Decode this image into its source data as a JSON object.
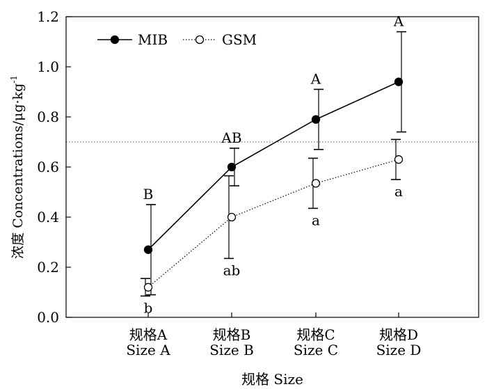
{
  "chart_data": {
    "type": "line",
    "title": "",
    "xlabel": "规格 Size",
    "ylabel": "浓度 Concentrations/μg·kg",
    "ylabel_superscript": "-1",
    "ylim": [
      0.0,
      1.2
    ],
    "y_ticks": [
      "0.0",
      "0.2",
      "0.4",
      "0.6",
      "0.8",
      "1.0",
      "1.2"
    ],
    "categories": [
      {
        "line1": "规格A",
        "line2": "Size A"
      },
      {
        "line1": "规格B",
        "line2": "Size B"
      },
      {
        "line1": "规格C",
        "line2": "Size C"
      },
      {
        "line1": "规格D",
        "line2": "Size D"
      }
    ],
    "reference_line": {
      "y": 0.7,
      "style": "dotted"
    },
    "series": [
      {
        "name": "MIB",
        "marker": "filled-circle",
        "line": "solid",
        "values": [
          0.27,
          0.6,
          0.79,
          0.94
        ],
        "error": [
          0.18,
          0.075,
          0.12,
          0.2
        ],
        "letters": [
          "B",
          "AB",
          "A",
          "A"
        ],
        "letter_position": "above"
      },
      {
        "name": "GSM",
        "marker": "open-circle",
        "line": "dotted",
        "values": [
          0.12,
          0.4,
          0.535,
          0.63
        ],
        "error": [
          0.035,
          0.165,
          0.1,
          0.08
        ],
        "letters": [
          "b",
          "ab",
          "a",
          "a"
        ],
        "letter_position": "below"
      }
    ],
    "legend": {
      "position": "top-left"
    },
    "grid": false
  }
}
